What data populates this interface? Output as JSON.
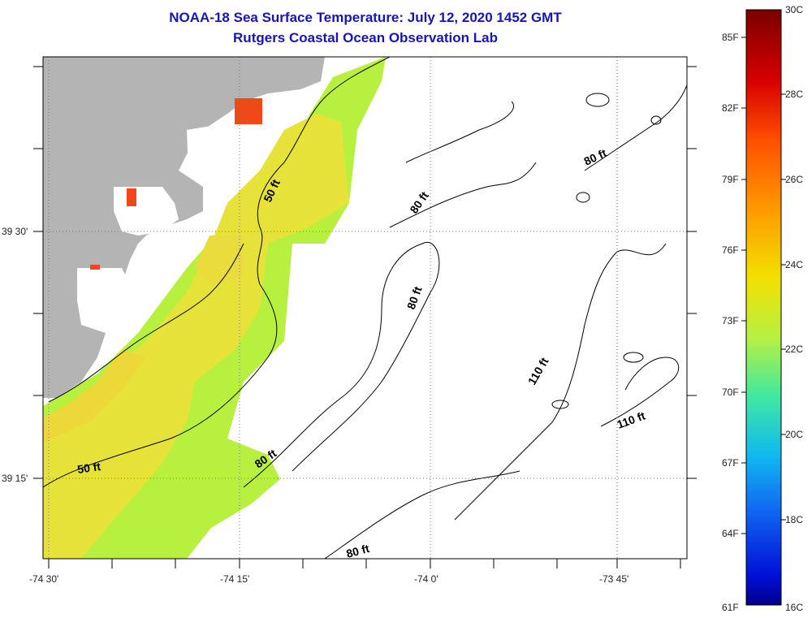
{
  "header": {
    "title": "NOAA-18 Sea Surface Temperature:  July 12, 2020 1452 GMT",
    "subtitle": "Rutgers Coastal Ocean Observation Lab"
  },
  "axes": {
    "x_ticks": [
      "-74 30'",
      "-74 15'",
      "-74 0'",
      "-73 45'"
    ],
    "y_ticks": [
      "39 30'",
      "39 15'"
    ]
  },
  "contour_labels": [
    "50 ft",
    "50 ft",
    "80 ft",
    "80 ft",
    "80 ft",
    "80 ft",
    "80 ft",
    "110 ft",
    "110 ft"
  ],
  "colorbar": {
    "fahrenheit": [
      "85F",
      "82F",
      "79F",
      "76F",
      "73F",
      "70F",
      "67F",
      "64F",
      "61F"
    ],
    "celsius": [
      "30C",
      "28C",
      "26C",
      "24C",
      "22C",
      "20C",
      "18C",
      "16C"
    ]
  },
  "colors": {
    "title": "#1616b4",
    "land": "#b4b4b4",
    "warm": "#e8e63a",
    "cool": "#b8f040",
    "hot": "#f04818"
  }
}
